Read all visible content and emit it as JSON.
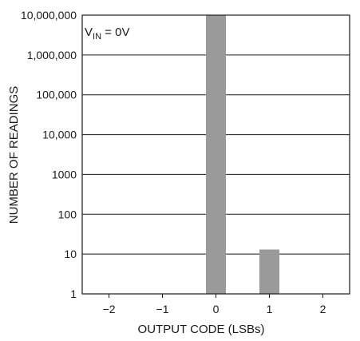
{
  "chart_data": {
    "type": "bar",
    "title": "",
    "xlabel": "OUTPUT CODE (LSBs)",
    "ylabel": "NUMBER OF READINGS",
    "y_scale": "log",
    "ylim": [
      1,
      10000000
    ],
    "y_ticks": [
      {
        "value": 1,
        "label": "1"
      },
      {
        "value": 10,
        "label": "10"
      },
      {
        "value": 100,
        "label": "100"
      },
      {
        "value": 1000,
        "label": "1000"
      },
      {
        "value": 10000,
        "label": "10,000"
      },
      {
        "value": 100000,
        "label": "100,000"
      },
      {
        "value": 1000000,
        "label": "1,000,000"
      },
      {
        "value": 10000000,
        "label": "10,000,000"
      }
    ],
    "categories": [
      "−2",
      "−1",
      "0",
      "1",
      "2"
    ],
    "values": [
      0,
      0,
      10000000,
      13,
      0
    ],
    "grid": "horizontal",
    "bar_color": "#9a9a9a",
    "annotation": {
      "main": "V",
      "sub": "IN",
      "rest": " = 0V"
    }
  }
}
